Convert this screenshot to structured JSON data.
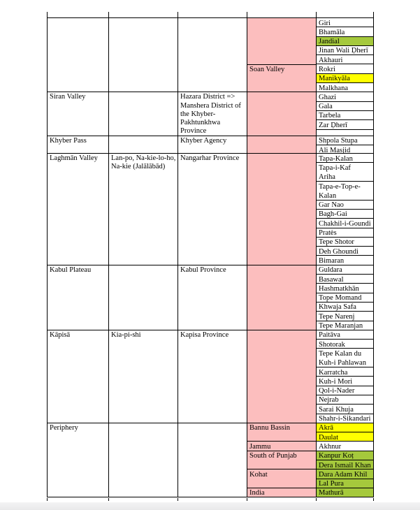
{
  "page": {
    "background": "#ffffff",
    "bottom_edge_color": "#ededee"
  },
  "colors": {
    "pink": "#FCBEBE",
    "green": "#A5C93C",
    "yellow": "#FFFF00",
    "border": "#000000",
    "text": "#000000"
  },
  "table": {
    "sections": [
      {
        "region": "",
        "local_names": "",
        "province": "",
        "lines": 8,
        "areas": [
          {
            "label": "",
            "lines": 5
          },
          {
            "label": "Soan Valley",
            "lines": 3
          }
        ],
        "sites": [
          {
            "name": "Giri",
            "lines": 1,
            "highlight": "none"
          },
          {
            "name": "Bhamāla",
            "lines": 1,
            "highlight": "none"
          },
          {
            "name": "Jandial",
            "lines": 1,
            "highlight": "green"
          },
          {
            "name": "Jinan Wali Ḍherī",
            "lines": 1,
            "highlight": "none"
          },
          {
            "name": "Akhauri",
            "lines": 1,
            "highlight": "none"
          },
          {
            "name": "Rokri",
            "lines": 1,
            "highlight": "none"
          },
          {
            "name": "Manikyāla",
            "lines": 1,
            "highlight": "yellow"
          },
          {
            "name": "Malkhana",
            "lines": 1,
            "highlight": "none"
          }
        ]
      },
      {
        "region": "Siran Valley",
        "local_names": "",
        "province": "Hazara District =>\nManshera District of\nthe Khyber-\nPakhtunkhwa\nProvince",
        "lines": 4.7,
        "areas": [
          {
            "label": "",
            "lines": 4.7
          }
        ],
        "sites": [
          {
            "name": "Ghazi",
            "lines": 1,
            "highlight": "none"
          },
          {
            "name": "Gala",
            "lines": 1,
            "highlight": "none"
          },
          {
            "name": "Tarbela",
            "lines": 1,
            "highlight": "none"
          },
          {
            "name": "Zar Ḍherī",
            "lines": 1,
            "highlight": "none"
          },
          {
            "name": "",
            "lines": 0.7,
            "highlight": "none"
          }
        ]
      },
      {
        "region": "Khyber Pass",
        "local_names": "",
        "province": "Khyber Agency",
        "lines": 1.9,
        "areas": [
          {
            "label": "",
            "lines": 1.9
          }
        ],
        "sites": [
          {
            "name": "Shpola Stupa",
            "lines": 1,
            "highlight": "none"
          },
          {
            "name": "Ali Masjid",
            "lines": 0.9,
            "highlight": "none"
          }
        ]
      },
      {
        "region": "Laghmān Valley",
        "local_names": "Lan-po, Na-kie-lo-ho,\nNa-kie (Jalālābād)",
        "province": "Nangarhar Province",
        "lines": 12,
        "areas": [
          {
            "label": "",
            "lines": 12
          }
        ],
        "sites": [
          {
            "name": "Tapa-Kalan",
            "lines": 1,
            "highlight": "none"
          },
          {
            "name": "Tapa-i-Kaf\nAriha",
            "lines": 2,
            "highlight": "none"
          },
          {
            "name": "Tapa-e-Top-e-\nKalan",
            "lines": 2,
            "highlight": "none"
          },
          {
            "name": "Gar Nao",
            "lines": 1,
            "highlight": "none"
          },
          {
            "name": "Bagh-Gai",
            "lines": 1,
            "highlight": "none"
          },
          {
            "name": "Chakhil-i-Goundi",
            "lines": 1,
            "highlight": "none"
          },
          {
            "name": "Pratès",
            "lines": 1,
            "highlight": "none"
          },
          {
            "name": "Tepe Shotor",
            "lines": 1,
            "highlight": "none"
          },
          {
            "name": "Deh Ghoundi",
            "lines": 1,
            "highlight": "none"
          },
          {
            "name": "Bimaran",
            "lines": 1,
            "highlight": "none"
          }
        ]
      },
      {
        "region": "Kabul Plateau",
        "local_names": "",
        "province": "Kabul Province",
        "lines": 7,
        "areas": [
          {
            "label": "",
            "lines": 7
          }
        ],
        "sites": [
          {
            "name": "Guldara",
            "lines": 1,
            "highlight": "none"
          },
          {
            "name": "Basawal",
            "lines": 1,
            "highlight": "none"
          },
          {
            "name": "Hashmatkhān",
            "lines": 1,
            "highlight": "none"
          },
          {
            "name": "Tope Momand",
            "lines": 1,
            "highlight": "none"
          },
          {
            "name": "Khwaja Safa",
            "lines": 1,
            "highlight": "none"
          },
          {
            "name": "Tepe Narenj",
            "lines": 1,
            "highlight": "none"
          },
          {
            "name": "Tepe Maranjan",
            "lines": 1,
            "highlight": "none"
          }
        ]
      },
      {
        "region": "Kāpisā",
        "local_names": "Kia-pi-shi",
        "province": "Kapisa Province",
        "lines": 10,
        "areas": [
          {
            "label": "",
            "lines": 10
          }
        ],
        "sites": [
          {
            "name": "Paitāva",
            "lines": 1,
            "highlight": "none"
          },
          {
            "name": "Shotorak",
            "lines": 1,
            "highlight": "none"
          },
          {
            "name": "Tepe Kalan du\nKuh-i Pahlawan",
            "lines": 2,
            "highlight": "none"
          },
          {
            "name": "Karratcha",
            "lines": 1,
            "highlight": "none"
          },
          {
            "name": "Kuh-i Mori",
            "lines": 1,
            "highlight": "none"
          },
          {
            "name": "Qol-i-Nader",
            "lines": 1,
            "highlight": "none"
          },
          {
            "name": "Nejrab",
            "lines": 1,
            "highlight": "none"
          },
          {
            "name": "Sarai Khuja",
            "lines": 1,
            "highlight": "none"
          },
          {
            "name": "Shahr-i-Sikandari",
            "lines": 1,
            "highlight": "none"
          }
        ]
      },
      {
        "region": "Periphery",
        "local_names": "",
        "province": "",
        "lines": 8,
        "areas": [
          {
            "label": "Bannu Bassin",
            "lines": 2
          },
          {
            "label": "Jammu",
            "lines": 1
          },
          {
            "label": "South of Punjab",
            "lines": 2
          },
          {
            "label": "Kohat",
            "lines": 2
          },
          {
            "label": "India",
            "lines": 1
          }
        ],
        "sites": [
          {
            "name": "Akrā",
            "lines": 1,
            "highlight": "yellow"
          },
          {
            "name": "Daulat",
            "lines": 1,
            "highlight": "yellow"
          },
          {
            "name": "Akhnur",
            "lines": 1,
            "highlight": "none"
          },
          {
            "name": "Kanpur Koṭ",
            "lines": 1,
            "highlight": "green"
          },
          {
            "name": "Dera Ismail Khan",
            "lines": 1,
            "highlight": "green"
          },
          {
            "name": "Dara Adam Khil",
            "lines": 1,
            "highlight": "green"
          },
          {
            "name": "Lal Pura",
            "lines": 1,
            "highlight": "green"
          },
          {
            "name": "Mathurā",
            "lines": 1,
            "highlight": "green"
          }
        ]
      }
    ]
  }
}
